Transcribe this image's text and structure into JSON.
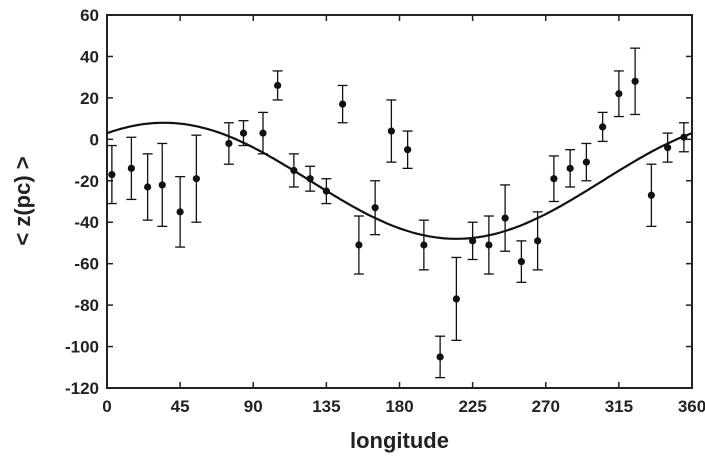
{
  "chart_data": {
    "type": "scatter",
    "title": "",
    "xlabel": "longitude",
    "ylabel": "< z(pc) >",
    "xlim": [
      0,
      360
    ],
    "ylim": [
      -120,
      60
    ],
    "xticks": [
      0,
      45,
      90,
      135,
      180,
      225,
      270,
      315,
      360
    ],
    "yticks": [
      60,
      40,
      20,
      0,
      -20,
      -40,
      -60,
      -80,
      -100,
      -120
    ],
    "grid": false,
    "legend": "none",
    "colors": {
      "marker": "#111111",
      "curve": "#111111",
      "axis": "#222222"
    },
    "series": [
      {
        "kind": "points-with-errorbars",
        "x": [
          3,
          15,
          25,
          34,
          45,
          55,
          75,
          84,
          96,
          105,
          115,
          125,
          135,
          145,
          155,
          165,
          175,
          185,
          195,
          205,
          215,
          225,
          235,
          245,
          255,
          265,
          275,
          285,
          295,
          305,
          315,
          325,
          335,
          345,
          355
        ],
        "y": [
          -17,
          -14,
          -23,
          -22,
          -35,
          -19,
          -2,
          3,
          3,
          26,
          -15,
          -19,
          -25,
          17,
          -51,
          -33,
          4,
          -5,
          -51,
          -105,
          -77,
          -49,
          -51,
          -38,
          -59,
          -49,
          -19,
          -14,
          -11,
          6,
          22,
          28,
          -27,
          -4,
          1
        ],
        "yerr": [
          14,
          15,
          16,
          20,
          17,
          21,
          10,
          6,
          10,
          7,
          8,
          6,
          6,
          9,
          14,
          13,
          15,
          9,
          12,
          10,
          20,
          9,
          14,
          16,
          10,
          14,
          11,
          9,
          9,
          7,
          11,
          16,
          15,
          7,
          7
        ]
      },
      {
        "kind": "fit-curve",
        "model": "z = -20 + 28*cos((longitude - 35) deg)"
      }
    ]
  }
}
